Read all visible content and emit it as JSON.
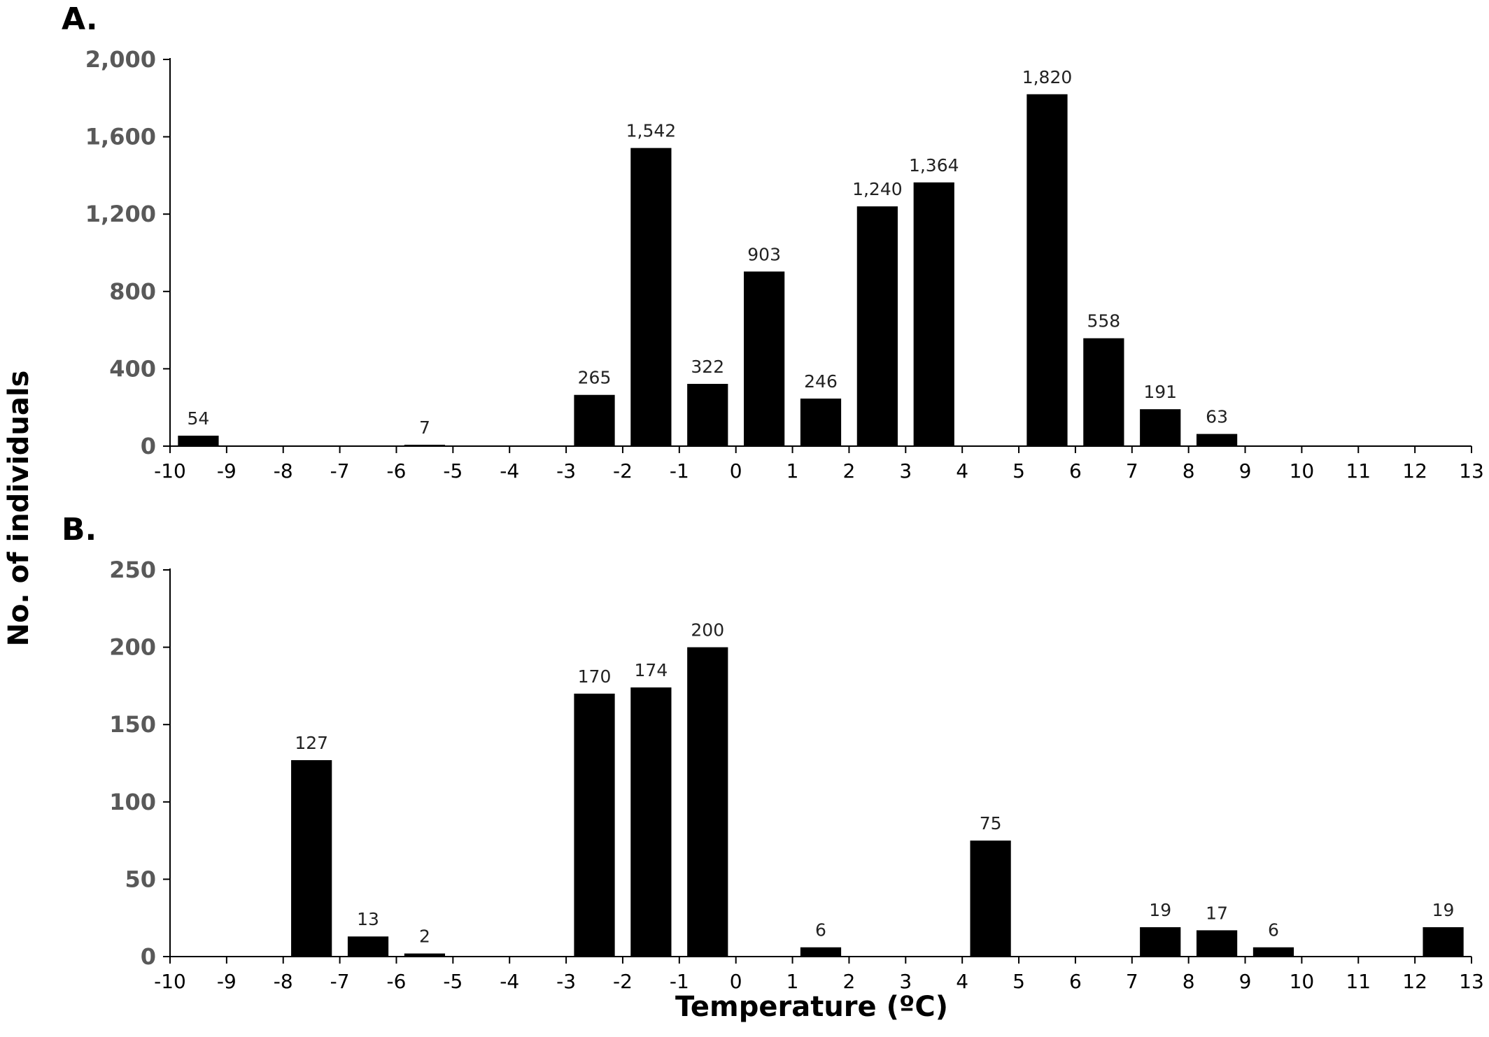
{
  "shared": {
    "xlabel": "Temperature (ºC)",
    "ylabel": "No. of individuals"
  },
  "chart_data": [
    {
      "type": "bar",
      "panel": "A.",
      "x_range": [
        -10,
        13
      ],
      "x_ticks": [
        "-10",
        "-9",
        "-8",
        "-7",
        "-6",
        "-5",
        "-4",
        "-3",
        "-2",
        "-1",
        "0",
        "1",
        "2",
        "3",
        "4",
        "5",
        "6",
        "7",
        "8",
        "9",
        "10",
        "11",
        "12",
        "13"
      ],
      "ylim": [
        0,
        2000
      ],
      "y_ticks": [
        {
          "v": 0,
          "label": "0"
        },
        {
          "v": 400,
          "label": "400"
        },
        {
          "v": 800,
          "label": "800"
        },
        {
          "v": 1200,
          "label": "1,200"
        },
        {
          "v": 1600,
          "label": "1,600"
        },
        {
          "v": 2000,
          "label": "2,000"
        }
      ],
      "bars": [
        {
          "bin": "-10 to -9",
          "start": -10,
          "end": -9,
          "value": 54,
          "label": "54"
        },
        {
          "bin": "-6 to -5",
          "start": -6,
          "end": -5,
          "value": 7,
          "label": "7"
        },
        {
          "bin": "-3 to -2",
          "start": -3,
          "end": -2,
          "value": 265,
          "label": "265"
        },
        {
          "bin": "-2 to -1",
          "start": -2,
          "end": -1,
          "value": 1542,
          "label": "1,542"
        },
        {
          "bin": "-1 to 0",
          "start": -1,
          "end": 0,
          "value": 322,
          "label": "322"
        },
        {
          "bin": "0 to 1",
          "start": 0,
          "end": 1,
          "value": 903,
          "label": "903"
        },
        {
          "bin": "1 to 2",
          "start": 1,
          "end": 2,
          "value": 246,
          "label": "246"
        },
        {
          "bin": "2 to 3",
          "start": 2,
          "end": 3,
          "value": 1240,
          "label": "1,240"
        },
        {
          "bin": "3 to 4",
          "start": 3,
          "end": 4,
          "value": 1364,
          "label": "1,364"
        },
        {
          "bin": "5 to 6",
          "start": 5,
          "end": 6,
          "value": 1820,
          "label": "1,820"
        },
        {
          "bin": "6 to 7",
          "start": 6,
          "end": 7,
          "value": 558,
          "label": "558"
        },
        {
          "bin": "7 to 8",
          "start": 7,
          "end": 8,
          "value": 191,
          "label": "191"
        },
        {
          "bin": "8 to 9",
          "start": 8,
          "end": 9,
          "value": 63,
          "label": "63"
        }
      ]
    },
    {
      "type": "bar",
      "panel": "B.",
      "x_range": [
        -10,
        13
      ],
      "x_ticks": [
        "-10",
        "-9",
        "-8",
        "-7",
        "-6",
        "-5",
        "-4",
        "-3",
        "-2",
        "-1",
        "0",
        "1",
        "2",
        "3",
        "4",
        "5",
        "6",
        "7",
        "8",
        "9",
        "10",
        "11",
        "12",
        "13"
      ],
      "ylim": [
        0,
        250
      ],
      "y_ticks": [
        {
          "v": 0,
          "label": "0"
        },
        {
          "v": 50,
          "label": "50"
        },
        {
          "v": 100,
          "label": "100"
        },
        {
          "v": 150,
          "label": "150"
        },
        {
          "v": 200,
          "label": "200"
        },
        {
          "v": 250,
          "label": "250"
        }
      ],
      "bars": [
        {
          "bin": "-8 to -7",
          "start": -8,
          "end": -7,
          "value": 127,
          "label": "127"
        },
        {
          "bin": "-7 to -6",
          "start": -7,
          "end": -6,
          "value": 13,
          "label": "13"
        },
        {
          "bin": "-6 to -5",
          "start": -6,
          "end": -5,
          "value": 2,
          "label": "2"
        },
        {
          "bin": "-3 to -2",
          "start": -3,
          "end": -2,
          "value": 170,
          "label": "170"
        },
        {
          "bin": "-2 to -1",
          "start": -2,
          "end": -1,
          "value": 174,
          "label": "174"
        },
        {
          "bin": "-1 to 0",
          "start": -1,
          "end": 0,
          "value": 200,
          "label": "200"
        },
        {
          "bin": "1 to 2",
          "start": 1,
          "end": 2,
          "value": 6,
          "label": "6"
        },
        {
          "bin": "4 to 5",
          "start": 4,
          "end": 5,
          "value": 75,
          "label": "75"
        },
        {
          "bin": "7 to 8",
          "start": 7,
          "end": 8,
          "value": 19,
          "label": "19"
        },
        {
          "bin": "8 to 9",
          "start": 8,
          "end": 9,
          "value": 17,
          "label": "17"
        },
        {
          "bin": "9 to 10",
          "start": 9,
          "end": 10,
          "value": 6,
          "label": "6"
        },
        {
          "bin": "12 to 13",
          "start": 12,
          "end": 13,
          "value": 19,
          "label": "19"
        }
      ]
    }
  ]
}
